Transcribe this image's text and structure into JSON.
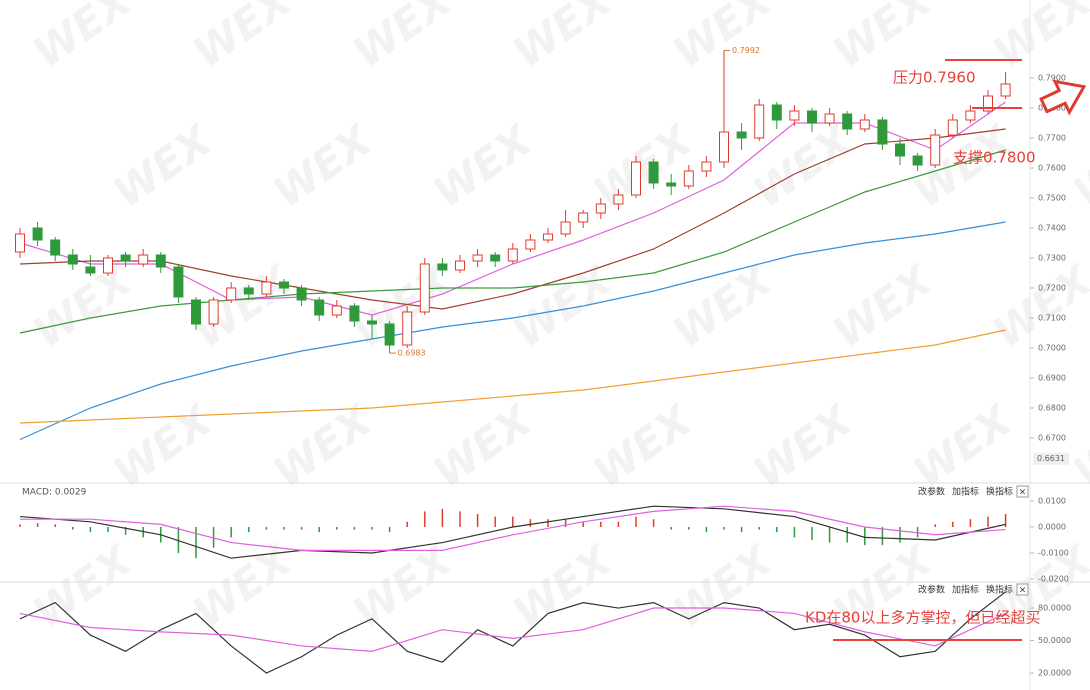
{
  "watermark": "WEX",
  "chart_data": [
    {
      "type": "candlestick",
      "ohlc": [
        [
          0.732,
          0.74,
          0.73,
          0.738
        ],
        [
          0.74,
          0.742,
          0.734,
          0.736
        ],
        [
          0.736,
          0.737,
          0.729,
          0.731
        ],
        [
          0.731,
          0.733,
          0.726,
          0.728
        ],
        [
          0.727,
          0.731,
          0.724,
          0.725
        ],
        [
          0.725,
          0.731,
          0.724,
          0.73
        ],
        [
          0.731,
          0.732,
          0.727,
          0.729
        ],
        [
          0.728,
          0.733,
          0.727,
          0.731
        ],
        [
          0.731,
          0.732,
          0.725,
          0.727
        ],
        [
          0.727,
          0.728,
          0.715,
          0.717
        ],
        [
          0.716,
          0.717,
          0.706,
          0.708
        ],
        [
          0.708,
          0.717,
          0.707,
          0.716
        ],
        [
          0.716,
          0.722,
          0.715,
          0.72
        ],
        [
          0.72,
          0.721,
          0.716,
          0.718
        ],
        [
          0.718,
          0.724,
          0.717,
          0.722
        ],
        [
          0.722,
          0.723,
          0.718,
          0.72
        ],
        [
          0.72,
          0.721,
          0.714,
          0.716
        ],
        [
          0.716,
          0.717,
          0.709,
          0.711
        ],
        [
          0.711,
          0.716,
          0.71,
          0.714
        ],
        [
          0.714,
          0.715,
          0.707,
          0.709
        ],
        [
          0.709,
          0.711,
          0.703,
          0.708
        ],
        [
          0.708,
          0.709,
          0.6983,
          0.701
        ],
        [
          0.701,
          0.714,
          0.7,
          0.712
        ],
        [
          0.712,
          0.73,
          0.711,
          0.728
        ],
        [
          0.728,
          0.73,
          0.724,
          0.726
        ],
        [
          0.726,
          0.731,
          0.725,
          0.729
        ],
        [
          0.729,
          0.733,
          0.727,
          0.731
        ],
        [
          0.731,
          0.732,
          0.727,
          0.729
        ],
        [
          0.729,
          0.735,
          0.728,
          0.733
        ],
        [
          0.733,
          0.738,
          0.732,
          0.736
        ],
        [
          0.736,
          0.74,
          0.735,
          0.738
        ],
        [
          0.738,
          0.746,
          0.737,
          0.742
        ],
        [
          0.742,
          0.746,
          0.74,
          0.745
        ],
        [
          0.745,
          0.75,
          0.743,
          0.748
        ],
        [
          0.748,
          0.753,
          0.746,
          0.751
        ],
        [
          0.751,
          0.764,
          0.75,
          0.762
        ],
        [
          0.762,
          0.763,
          0.753,
          0.755
        ],
        [
          0.755,
          0.758,
          0.751,
          0.754
        ],
        [
          0.754,
          0.761,
          0.753,
          0.759
        ],
        [
          0.759,
          0.764,
          0.757,
          0.762
        ],
        [
          0.762,
          0.7992,
          0.76,
          0.772
        ],
        [
          0.772,
          0.775,
          0.766,
          0.77
        ],
        [
          0.77,
          0.783,
          0.769,
          0.781
        ],
        [
          0.781,
          0.782,
          0.773,
          0.776
        ],
        [
          0.776,
          0.781,
          0.774,
          0.779
        ],
        [
          0.779,
          0.78,
          0.772,
          0.775
        ],
        [
          0.775,
          0.78,
          0.774,
          0.778
        ],
        [
          0.778,
          0.779,
          0.771,
          0.773
        ],
        [
          0.773,
          0.778,
          0.772,
          0.776
        ],
        [
          0.776,
          0.777,
          0.766,
          0.768
        ],
        [
          0.768,
          0.77,
          0.761,
          0.764
        ],
        [
          0.764,
          0.765,
          0.759,
          0.761
        ],
        [
          0.761,
          0.773,
          0.76,
          0.771
        ],
        [
          0.771,
          0.778,
          0.77,
          0.776
        ],
        [
          0.776,
          0.781,
          0.775,
          0.779
        ],
        [
          0.779,
          0.786,
          0.778,
          0.784
        ],
        [
          0.784,
          0.792,
          0.783,
          0.788
        ]
      ],
      "up_color": "#e03a30",
      "down_color": "#2e9a3c",
      "series": [
        {
          "color": "#e060e0",
          "x": [
            0,
            4,
            8,
            12,
            16,
            20,
            24,
            28,
            32,
            36,
            40,
            44,
            48,
            52,
            56
          ],
          "values": [
            0.735,
            0.728,
            0.728,
            0.716,
            0.717,
            0.711,
            0.718,
            0.728,
            0.736,
            0.745,
            0.756,
            0.775,
            0.775,
            0.766,
            0.782
          ]
        },
        {
          "color": "#a04030",
          "x": [
            0,
            4,
            8,
            12,
            16,
            20,
            24,
            28,
            32,
            36,
            40,
            44,
            48,
            52,
            56
          ],
          "values": [
            0.728,
            0.729,
            0.729,
            0.724,
            0.72,
            0.716,
            0.713,
            0.718,
            0.725,
            0.733,
            0.745,
            0.758,
            0.768,
            0.77,
            0.773
          ]
        },
        {
          "color": "#3a9a3a",
          "x": [
            0,
            4,
            8,
            12,
            16,
            20,
            24,
            28,
            32,
            36,
            40,
            44,
            48,
            52,
            56
          ],
          "values": [
            0.705,
            0.71,
            0.714,
            0.716,
            0.718,
            0.719,
            0.72,
            0.72,
            0.722,
            0.725,
            0.732,
            0.742,
            0.752,
            0.759,
            0.766
          ]
        },
        {
          "color": "#3a8ed8",
          "x": [
            0,
            4,
            8,
            12,
            16,
            20,
            24,
            28,
            32,
            36,
            40,
            44,
            48,
            52,
            56
          ],
          "values": [
            0.6695,
            0.68,
            0.688,
            0.694,
            0.699,
            0.703,
            0.707,
            0.71,
            0.714,
            0.719,
            0.725,
            0.731,
            0.735,
            0.738,
            0.742
          ]
        },
        {
          "color": "#f0a030",
          "x": [
            0,
            4,
            8,
            12,
            16,
            20,
            24,
            28,
            32,
            36,
            40,
            44,
            48,
            52,
            56
          ],
          "values": [
            0.675,
            0.676,
            0.677,
            0.678,
            0.679,
            0.68,
            0.682,
            0.684,
            0.686,
            0.689,
            0.692,
            0.695,
            0.698,
            0.701,
            0.706
          ]
        }
      ],
      "ylim": [
        0.656,
        0.816
      ],
      "yticks": [
        {
          "value": 0.67,
          "label": "0.6700"
        },
        {
          "value": 0.68,
          "label": "0.6800"
        },
        {
          "value": 0.69,
          "label": "0.6900"
        },
        {
          "value": 0.7,
          "label": "0.7000"
        },
        {
          "value": 0.71,
          "label": "0.7100"
        },
        {
          "value": 0.72,
          "label": "0.7200"
        },
        {
          "value": 0.73,
          "label": "0.7300"
        },
        {
          "value": 0.74,
          "label": "0.7400"
        },
        {
          "value": 0.75,
          "label": "0.7500"
        },
        {
          "value": 0.76,
          "label": "0.7600"
        },
        {
          "value": 0.77,
          "label": "0.7700"
        },
        {
          "value": 0.78,
          "label": "0.7800"
        },
        {
          "value": 0.79,
          "label": "0.7900"
        }
      ],
      "price_tag": 0.6631,
      "extremes": [
        0.7992,
        0.6983
      ],
      "annotations": [
        {
          "text": "压力0.7960",
          "level": 0.796
        },
        {
          "text": "支撑0.7800",
          "level": 0.78
        }
      ]
    },
    {
      "type": "macd",
      "title": "MACD: 0.0029",
      "histogram": [
        0.001,
        0.0015,
        0.001,
        -0.001,
        -0.002,
        -0.002,
        -0.003,
        -0.004,
        -0.006,
        -0.01,
        -0.012,
        -0.008,
        -0.004,
        -0.002,
        -0.001,
        -0.001,
        -0.001,
        -0.002,
        -0.001,
        -0.001,
        -0.001,
        -0.002,
        0.002,
        0.006,
        0.007,
        0.006,
        0.005,
        0.004,
        0.004,
        0.003,
        0.003,
        0.003,
        0.002,
        0.002,
        0.002,
        0.004,
        0.003,
        -0.001,
        -0.001,
        -0.002,
        -0.001,
        -0.002,
        -0.001,
        -0.002,
        -0.004,
        -0.005,
        -0.006,
        -0.006,
        -0.007,
        -0.007,
        -0.006,
        -0.004,
        0.001,
        0.002,
        0.003,
        0.004,
        0.005
      ],
      "up_color": "#e03a30",
      "down_color": "#2e9a3c",
      "series": [
        {
          "color": "#333333",
          "x": [
            0,
            4,
            8,
            12,
            16,
            20,
            24,
            28,
            32,
            36,
            40,
            44,
            48,
            52,
            56
          ],
          "values": [
            0.004,
            0.002,
            -0.003,
            -0.012,
            -0.009,
            -0.01,
            -0.006,
            0.0,
            0.004,
            0.008,
            0.007,
            0.004,
            -0.004,
            -0.005,
            0.001
          ]
        },
        {
          "color": "#e060e0",
          "x": [
            0,
            4,
            8,
            12,
            16,
            20,
            24,
            28,
            32,
            36,
            40,
            44,
            48,
            52,
            56
          ],
          "values": [
            0.003,
            0.003,
            0.001,
            -0.006,
            -0.009,
            -0.009,
            -0.009,
            -0.003,
            0.002,
            0.006,
            0.008,
            0.006,
            0.0,
            -0.003,
            -0.001
          ]
        }
      ],
      "ylim": [
        -0.0204,
        0.015
      ],
      "yticks": [
        {
          "value": 0.01,
          "label": "0.0100"
        },
        {
          "value": 0,
          "label": "0.0000"
        },
        {
          "value": -0.01,
          "label": "-0.0100"
        },
        {
          "value": -0.02,
          "label": "-0.0200"
        }
      ],
      "buttons": [
        "改参数",
        "加指标",
        "换指标"
      ],
      "close": "×"
    },
    {
      "type": "kd",
      "series": [
        {
          "color": "#333333",
          "x": [
            0,
            2,
            4,
            6,
            8,
            10,
            12,
            14,
            16,
            18,
            20,
            22,
            24,
            26,
            28,
            30,
            32,
            34,
            36,
            38,
            40,
            42,
            44,
            46,
            48,
            50,
            52,
            54,
            56
          ],
          "values": [
            70,
            85,
            55,
            40,
            60,
            75,
            45,
            20,
            35,
            55,
            70,
            40,
            30,
            60,
            45,
            75,
            85,
            80,
            85,
            70,
            85,
            80,
            60,
            65,
            55,
            35,
            40,
            70,
            95
          ]
        },
        {
          "color": "#e060e0",
          "x": [
            0,
            4,
            8,
            12,
            16,
            20,
            24,
            28,
            32,
            36,
            40,
            44,
            48,
            52,
            56
          ],
          "values": [
            75,
            62,
            58,
            55,
            45,
            40,
            60,
            52,
            60,
            80,
            80,
            75,
            58,
            45,
            75
          ]
        }
      ],
      "ylim": [
        4.3,
        98.5
      ],
      "yticks": [
        {
          "value": 80,
          "label": "80.0000"
        },
        {
          "value": 50,
          "label": "50.0000"
        },
        {
          "value": 20,
          "label": "20.0000"
        }
      ],
      "buttons": [
        "改参数",
        "加指标",
        "换指标"
      ],
      "close": "×",
      "annotation": "KD在80以上多方掌控，但已经超买"
    }
  ]
}
